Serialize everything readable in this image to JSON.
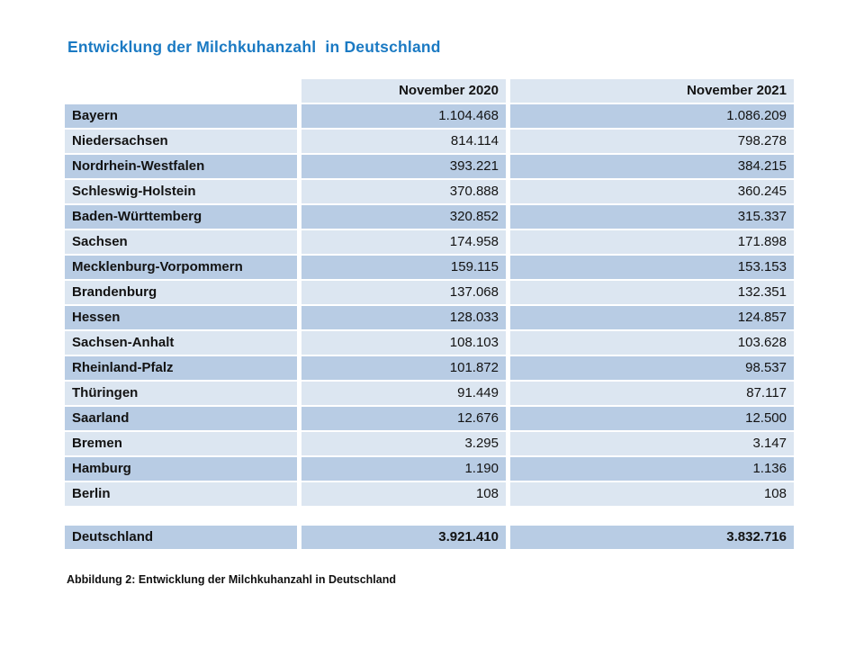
{
  "title": "Entwicklung der Milchkuhanzahl  in Deutschland",
  "caption": "Abbildung 2: Entwicklung der Milchkuhanzahl in Deutschland",
  "colors": {
    "title_blue": "#1b7ac3",
    "row_dark": "#b8cce4",
    "row_light": "#dce6f1",
    "background": "#ffffff"
  },
  "table": {
    "columns": [
      "November 2020",
      "November 2021"
    ],
    "rows": [
      {
        "state": "Bayern",
        "nov2020": "1.104.468",
        "nov2021": "1.086.209"
      },
      {
        "state": "Niedersachsen",
        "nov2020": "814.114",
        "nov2021": "798.278"
      },
      {
        "state": "Nordrhein-Westfalen",
        "nov2020": "393.221",
        "nov2021": "384.215"
      },
      {
        "state": "Schleswig-Holstein",
        "nov2020": "370.888",
        "nov2021": "360.245"
      },
      {
        "state": "Baden-Württemberg",
        "nov2020": "320.852",
        "nov2021": "315.337"
      },
      {
        "state": "Sachsen",
        "nov2020": "174.958",
        "nov2021": "171.898"
      },
      {
        "state": "Mecklenburg-Vorpommern",
        "nov2020": "159.115",
        "nov2021": "153.153"
      },
      {
        "state": "Brandenburg",
        "nov2020": "137.068",
        "nov2021": "132.351"
      },
      {
        "state": "Hessen",
        "nov2020": "128.033",
        "nov2021": "124.857"
      },
      {
        "state": "Sachsen-Anhalt",
        "nov2020": "108.103",
        "nov2021": "103.628"
      },
      {
        "state": "Rheinland-Pfalz",
        "nov2020": "101.872",
        "nov2021": "98.537"
      },
      {
        "state": "Thüringen",
        "nov2020": "91.449",
        "nov2021": "87.117"
      },
      {
        "state": "Saarland",
        "nov2020": "12.676",
        "nov2021": "12.500"
      },
      {
        "state": "Bremen",
        "nov2020": "3.295",
        "nov2021": "3.147"
      },
      {
        "state": "Hamburg",
        "nov2020": "1.190",
        "nov2021": "1.136"
      },
      {
        "state": "Berlin",
        "nov2020": "108",
        "nov2021": "108"
      }
    ],
    "total": {
      "state": "Deutschland",
      "nov2020": "3.921.410",
      "nov2021": "3.832.716"
    }
  }
}
